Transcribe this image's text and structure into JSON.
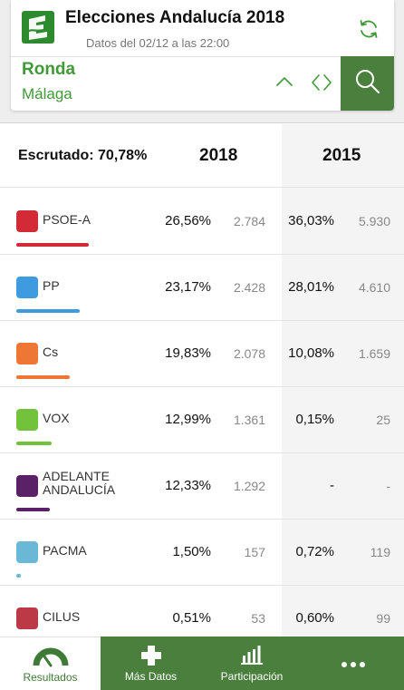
{
  "header": {
    "title": "Elecciones Andalucía 2018",
    "subtitle": "Datos del 02/12 a las 22:00",
    "location_city": "Ronda",
    "location_province": "Málaga",
    "icons": [
      "logo-icon",
      "refresh-icon",
      "chevron-up-icon",
      "code-arrows-icon",
      "search-icon"
    ]
  },
  "table": {
    "escrutado_label": "Escrutado:",
    "escrutado_value": "70,78%",
    "year_current": "2018",
    "year_previous": "2015",
    "parties": [
      {
        "name": "PSOE-A",
        "color": "#d22a36",
        "bar_fraction": 0.2656,
        "pct_2018": "26,56%",
        "votes_2018": "2.784",
        "pct_2015": "36,03%",
        "votes_2015": "5.930"
      },
      {
        "name": "PP",
        "color": "#3f9be0",
        "bar_fraction": 0.2317,
        "pct_2018": "23,17%",
        "votes_2018": "2.428",
        "pct_2015": "28,01%",
        "votes_2015": "4.610"
      },
      {
        "name": "Cs",
        "color": "#ee7735",
        "bar_fraction": 0.1983,
        "pct_2018": "19,83%",
        "votes_2018": "2.078",
        "pct_2015": "10,08%",
        "votes_2015": "1.659"
      },
      {
        "name": "VOX",
        "color": "#73c23c",
        "bar_fraction": 0.1299,
        "pct_2018": "12,99%",
        "votes_2018": "1.361",
        "pct_2015": "0,15%",
        "votes_2015": "25"
      },
      {
        "name": "ADELANTE\nANDALUCÍA",
        "color": "#5a2166",
        "bar_fraction": 0.1233,
        "pct_2018": "12,33%",
        "votes_2018": "1.292",
        "pct_2015": "-",
        "votes_2015": "-"
      },
      {
        "name": "PACMA",
        "color": "#6ab7d6",
        "bar_fraction": 0.015,
        "pct_2018": "1,50%",
        "votes_2018": "157",
        "pct_2015": "0,72%",
        "votes_2015": "119"
      },
      {
        "name": "CILUS",
        "color": "#bb3a45",
        "bar_fraction": 0.0051,
        "pct_2018": "0,51%",
        "votes_2018": "53",
        "pct_2015": "0,60%",
        "votes_2015": "99"
      }
    ]
  },
  "nav": {
    "items": [
      {
        "label": "Resultados",
        "icon": "gauge-icon",
        "active": true
      },
      {
        "label": "Más Datos",
        "icon": "plus-icon",
        "active": false
      },
      {
        "label": "Participación",
        "icon": "bar-chart-icon",
        "active": false
      },
      {
        "label": "",
        "icon": "more-dots-icon",
        "active": false
      }
    ]
  },
  "colors": {
    "brand_green": "#3f9a37",
    "nav_green": "#4a7f3d"
  }
}
